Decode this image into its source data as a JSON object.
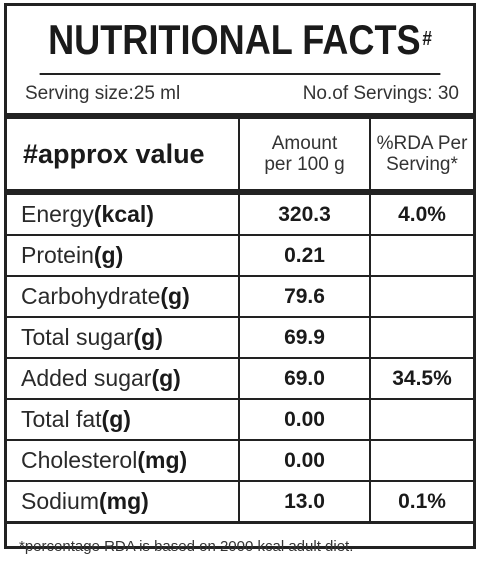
{
  "title": {
    "text": "NUTRITIONAL FACTS",
    "mark": "#"
  },
  "serving": {
    "size": "Serving size:25 ml",
    "count": "No.of Servings: 30"
  },
  "header": {
    "col1": "#approx value",
    "col2_line1": "Amount",
    "col2_line2": "per 100 g",
    "col3_line1": "%RDA Per",
    "col3_line2": "Serving*"
  },
  "rows": [
    {
      "name": "Energy",
      "unit": "(kcal)",
      "amount": "320.3",
      "rda": "4.0%"
    },
    {
      "name": "Protein",
      "unit": "(g)",
      "amount": "0.21",
      "rda": ""
    },
    {
      "name": "Carbohydrate",
      "unit": "(g)",
      "amount": "79.6",
      "rda": ""
    },
    {
      "name": "Total sugar",
      "unit": "(g)",
      "amount": "69.9",
      "rda": ""
    },
    {
      "name": "Added sugar",
      "unit": "(g)",
      "amount": "69.0",
      "rda": "34.5%"
    },
    {
      "name": "Total fat",
      "unit": "(g)",
      "amount": "0.00",
      "rda": ""
    },
    {
      "name": "Cholesterol",
      "unit": "(mg)",
      "amount": "0.00",
      "rda": ""
    },
    {
      "name": "Sodium",
      "unit": "(mg)",
      "amount": "13.0",
      "rda": "0.1%"
    }
  ],
  "footnote": "*percentage RDA is based on 2000 kcal adult diet."
}
